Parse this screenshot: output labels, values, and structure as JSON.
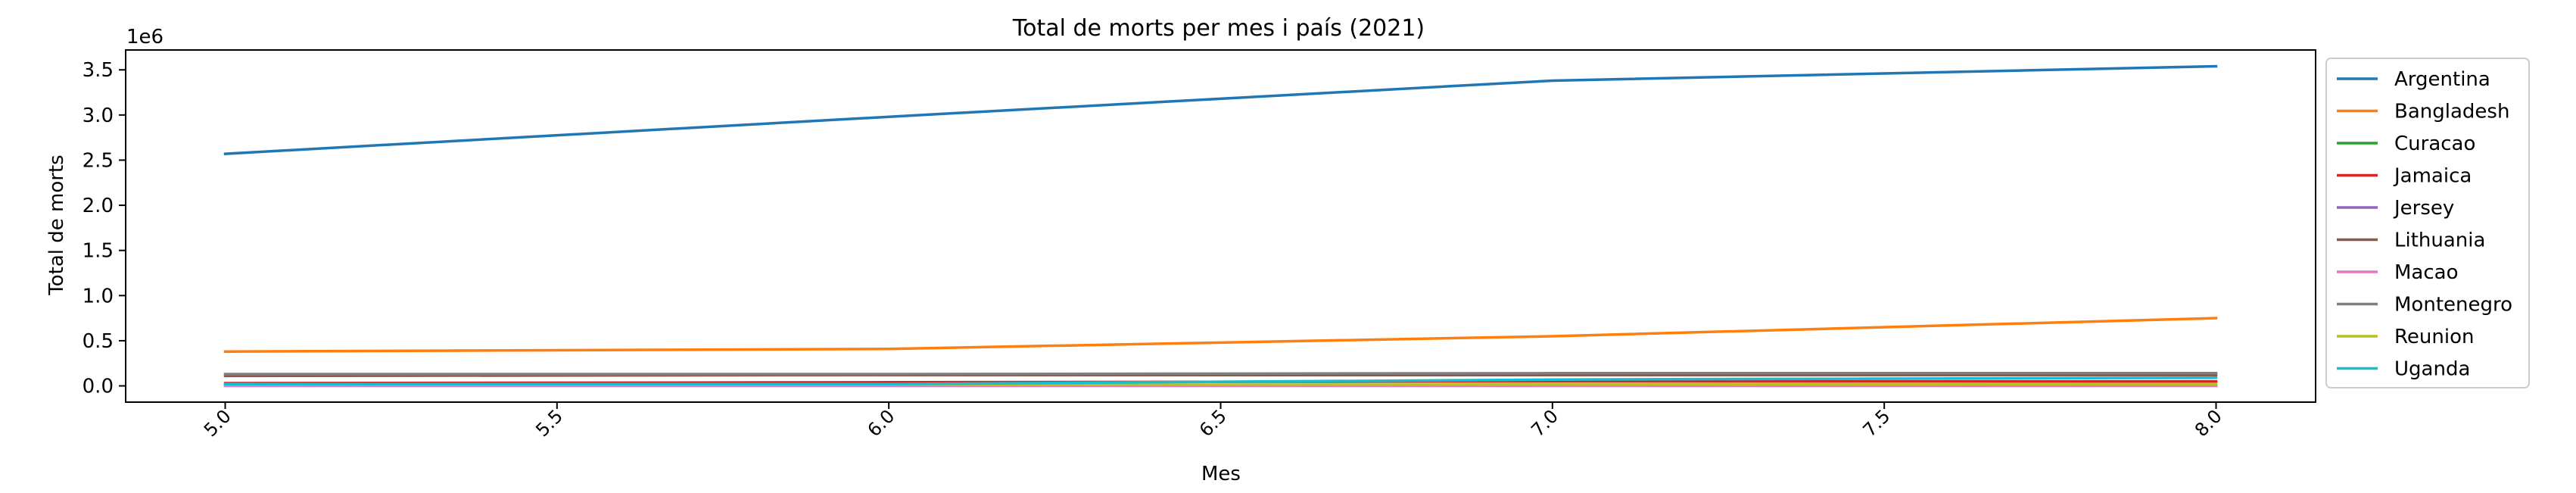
{
  "chart_data": {
    "type": "line",
    "title": "Total de morts per mes i país (2021)",
    "xlabel": "Mes",
    "ylabel": "Total de morts",
    "y_multiplier_label": "1e6",
    "x": [
      5,
      6,
      7,
      8
    ],
    "xlim": [
      4.85,
      8.15
    ],
    "ylim": [
      -0.18,
      3.72
    ],
    "x_ticks": [
      5.0,
      5.5,
      6.0,
      6.5,
      7.0,
      7.5,
      8.0
    ],
    "x_tick_labels": [
      "5.0",
      "5.5",
      "6.0",
      "6.5",
      "7.0",
      "7.5",
      "8.0"
    ],
    "y_ticks": [
      0.0,
      0.5,
      1.0,
      1.5,
      2.0,
      2.5,
      3.0,
      3.5
    ],
    "y_tick_labels": [
      "0.0",
      "0.5",
      "1.0",
      "1.5",
      "2.0",
      "2.5",
      "3.0",
      "3.5"
    ],
    "grid": false,
    "legend_position": "outside-right",
    "series": [
      {
        "name": "Argentina",
        "color": "#1f77b4",
        "values": [
          2.57,
          2.98,
          3.38,
          3.54
        ]
      },
      {
        "name": "Bangladesh",
        "color": "#ff7f0e",
        "values": [
          0.38,
          0.41,
          0.55,
          0.75
        ]
      },
      {
        "name": "Curacao",
        "color": "#2ca02c",
        "values": [
          0.002,
          0.003,
          0.004,
          0.005
        ]
      },
      {
        "name": "Jamaica",
        "color": "#d62728",
        "values": [
          0.03,
          0.04,
          0.05,
          0.05
        ]
      },
      {
        "name": "Jersey",
        "color": "#9467bd",
        "values": [
          0.002,
          0.002,
          0.002,
          0.002
        ]
      },
      {
        "name": "Lithuania",
        "color": "#8c564b",
        "values": [
          0.11,
          0.12,
          0.12,
          0.12
        ]
      },
      {
        "name": "Macao",
        "color": "#e377c2",
        "values": [
          0.0,
          0.0,
          0.0,
          0.0
        ]
      },
      {
        "name": "Montenegro",
        "color": "#7f7f7f",
        "values": [
          0.13,
          0.13,
          0.14,
          0.14
        ]
      },
      {
        "name": "Reunion",
        "color": "#bcbd22",
        "values": [
          0.01,
          0.01,
          0.015,
          0.02
        ]
      },
      {
        "name": "Uganda",
        "color": "#17becf",
        "values": [
          0.02,
          0.02,
          0.07,
          0.09
        ]
      }
    ]
  }
}
